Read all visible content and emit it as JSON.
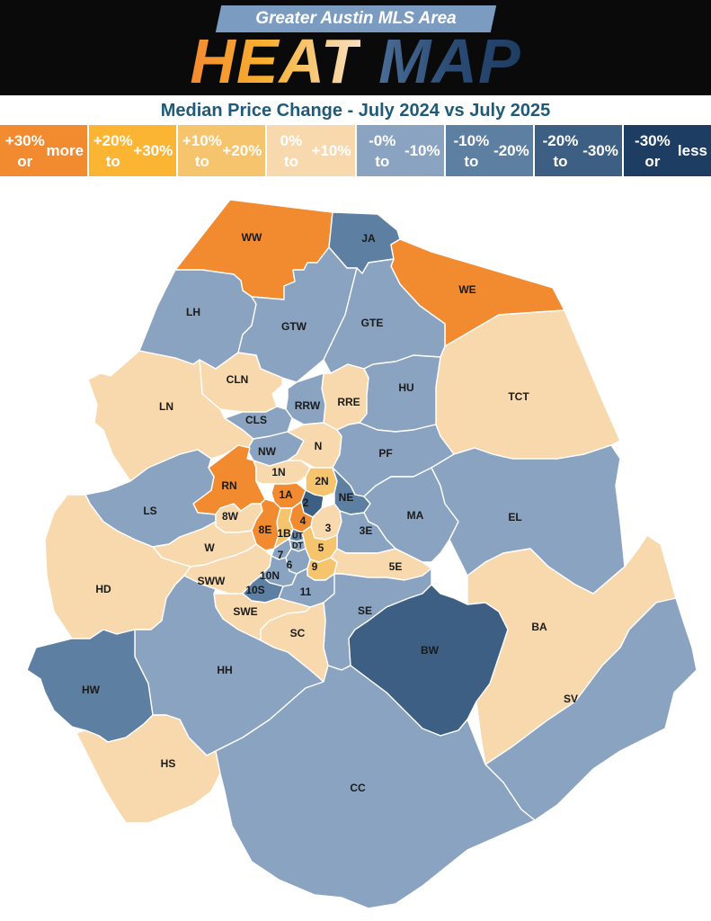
{
  "header": {
    "subtitle": "Greater Austin MLS Area",
    "title_word1": "HEAT",
    "title_word2": "MAP"
  },
  "chart_heading": "Median Price Change - July 2024 vs July 2025",
  "colors": {
    "c1": "#f28a30",
    "c2": "#fbb533",
    "c3": "#f7c46e",
    "c4": "#f7d9ad",
    "c5": "#8aa3c1",
    "c6": "#5d7fa2",
    "c7": "#3d5f84",
    "c8": "#1d3d63"
  },
  "legend": [
    {
      "line1": "+30% or",
      "line2": "more",
      "color": "#f28a30",
      "text_color": "#ffffff"
    },
    {
      "line1": "+20% to",
      "line2": "+30%",
      "color": "#fbb533",
      "text_color": "#ffffff"
    },
    {
      "line1": "+10% to",
      "line2": "+20%",
      "color": "#f7c46e",
      "text_color": "#ffffff"
    },
    {
      "line1": "0% to",
      "line2": "+10%",
      "color": "#f7d9ad",
      "text_color": "#ffffff"
    },
    {
      "line1": "-0% to",
      "line2": "-10%",
      "color": "#8aa3c1",
      "text_color": "#ffffff"
    },
    {
      "line1": "-10% to",
      "line2": "-20%",
      "color": "#5d7fa2",
      "text_color": "#ffffff"
    },
    {
      "line1": "-20% to",
      "line2": "-30%",
      "color": "#3d5f84",
      "text_color": "#ffffff"
    },
    {
      "line1": "-30% or",
      "line2": "less",
      "color": "#1d3d63",
      "text_color": "#ffffff"
    }
  ],
  "areas": [
    {
      "label": "WW",
      "class": "c1"
    },
    {
      "label": "JA",
      "class": "c6"
    },
    {
      "label": "WE",
      "class": "c1"
    },
    {
      "label": "LH",
      "class": "c5"
    },
    {
      "label": "GTW",
      "class": "c5"
    },
    {
      "label": "GTE",
      "class": "c5"
    },
    {
      "label": "TCT",
      "class": "c4"
    },
    {
      "label": "CLN",
      "class": "c4"
    },
    {
      "label": "LN",
      "class": "c4"
    },
    {
      "label": "RRE",
      "class": "c4"
    },
    {
      "label": "RRW",
      "class": "c5"
    },
    {
      "label": "HU",
      "class": "c5"
    },
    {
      "label": "CLS",
      "class": "c5"
    },
    {
      "label": "NW",
      "class": "c5"
    },
    {
      "label": "N",
      "class": "c4"
    },
    {
      "label": "PF",
      "class": "c5"
    },
    {
      "label": "RN",
      "class": "c1"
    },
    {
      "label": "1N",
      "class": "c4"
    },
    {
      "label": "2N",
      "class": "c3"
    },
    {
      "label": "NE",
      "class": "c6"
    },
    {
      "label": "1A",
      "class": "c1"
    },
    {
      "label": "2",
      "class": "c7"
    },
    {
      "label": "LS",
      "class": "c5"
    },
    {
      "label": "8W",
      "class": "c4"
    },
    {
      "label": "4",
      "class": "c1"
    },
    {
      "label": "3",
      "class": "c4"
    },
    {
      "label": "MA",
      "class": "c5"
    },
    {
      "label": "EL",
      "class": "c5"
    },
    {
      "label": "8E",
      "class": "c1"
    },
    {
      "label": "1B",
      "class": "c3"
    },
    {
      "label": "UT",
      "class": "c6"
    },
    {
      "label": "DT",
      "class": "c5"
    },
    {
      "label": "3E",
      "class": "c5"
    },
    {
      "label": "W",
      "class": "c4"
    },
    {
      "label": "5",
      "class": "c3"
    },
    {
      "label": "7",
      "class": "c5"
    },
    {
      "label": "6",
      "class": "c5"
    },
    {
      "label": "9",
      "class": "c3"
    },
    {
      "label": "5E",
      "class": "c4"
    },
    {
      "label": "HD",
      "class": "c4"
    },
    {
      "label": "SWW",
      "class": "c4"
    },
    {
      "label": "10N",
      "class": "c5"
    },
    {
      "label": "10S",
      "class": "c6"
    },
    {
      "label": "11",
      "class": "c5"
    },
    {
      "label": "SE",
      "class": "c5"
    },
    {
      "label": "SWE",
      "class": "c4"
    },
    {
      "label": "SC",
      "class": "c4"
    },
    {
      "label": "BA",
      "class": "c4"
    },
    {
      "label": "BW",
      "class": "c7"
    },
    {
      "label": "HH",
      "class": "c5"
    },
    {
      "label": "HW",
      "class": "c6"
    },
    {
      "label": "SV",
      "class": "c5"
    },
    {
      "label": "HS",
      "class": "c4"
    },
    {
      "label": "CC",
      "class": "c5"
    }
  ]
}
